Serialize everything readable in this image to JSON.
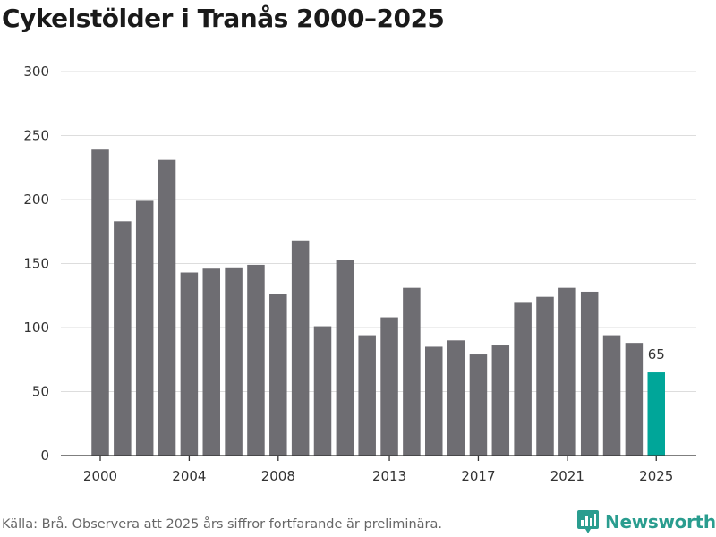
{
  "page": {
    "title": "Cykelstölder i Tranås 2000–2025",
    "source": "Källa: Brå. Observera att 2025 års siffror fortfarande är preliminära.",
    "brand": "Newsworthy"
  },
  "colors": {
    "bar": "#6e6d72",
    "highlight": "#00a699",
    "grid": "#dddddd",
    "axis": "#333333",
    "brand": "#2a9d8f"
  },
  "chart_data": {
    "type": "bar",
    "title": "Cykelstölder i Tranås 2000–2025",
    "xlabel": "",
    "ylabel": "",
    "ylim": [
      0,
      300
    ],
    "yticks": [
      0,
      50,
      100,
      150,
      200,
      250,
      300
    ],
    "xticks": [
      2000,
      2004,
      2008,
      2013,
      2017,
      2021,
      2025
    ],
    "grid": true,
    "categories": [
      2000,
      2001,
      2002,
      2003,
      2004,
      2005,
      2006,
      2007,
      2008,
      2009,
      2010,
      2011,
      2012,
      2013,
      2014,
      2015,
      2016,
      2017,
      2018,
      2019,
      2020,
      2021,
      2022,
      2023,
      2024,
      2025
    ],
    "values": [
      239,
      183,
      199,
      231,
      143,
      146,
      147,
      149,
      126,
      168,
      101,
      153,
      94,
      108,
      131,
      85,
      90,
      79,
      86,
      120,
      124,
      131,
      128,
      94,
      88,
      65
    ],
    "highlight_index": 25,
    "annotations": [
      {
        "category": 2025,
        "text": "65"
      }
    ]
  }
}
